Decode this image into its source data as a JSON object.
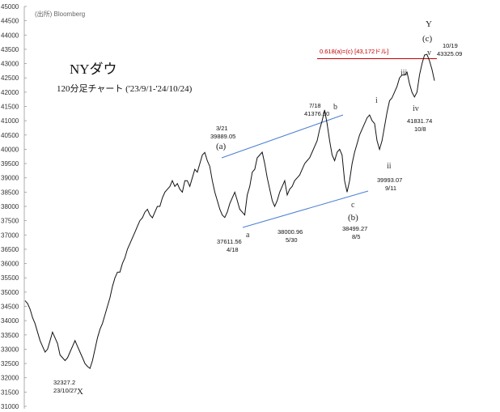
{
  "chart_data": {
    "type": "line",
    "title": "NYダウ",
    "subtitle": "120分足チャート ('23/9/1-'24/10/24)",
    "source": "(出所) Bloomberg",
    "ylim": [
      31000,
      45000
    ],
    "y_ticks": [
      "31000",
      "31500",
      "32000",
      "32500",
      "33000",
      "33500",
      "34000",
      "34500",
      "35000",
      "35500",
      "36000",
      "36500",
      "37000",
      "37500",
      "38000",
      "38500",
      "39000",
      "39500",
      "40000",
      "40500",
      "41000",
      "41500",
      "42000",
      "42500",
      "43000",
      "43500",
      "44000",
      "44500",
      "45000"
    ],
    "series": [
      {
        "values": [
          34700,
          34600,
          34400,
          34100,
          33900,
          33600,
          33300,
          33100,
          32900,
          33000,
          33300,
          33600,
          33400,
          33200,
          32800,
          32700,
          32600,
          32700,
          32900,
          33100,
          33300,
          33100,
          32900,
          32700,
          32500,
          32400,
          32327,
          32600,
          33000,
          33400,
          33700,
          33900,
          34200,
          34500,
          34800,
          35200,
          35500,
          35700,
          35700,
          36000,
          36200,
          36500,
          36700,
          36900,
          37100,
          37300,
          37500,
          37600,
          37800,
          37900,
          37700,
          37600,
          37800,
          38000,
          38000,
          38300,
          38500,
          38600,
          38700,
          38900,
          38700,
          38800,
          38600,
          38500,
          38900,
          38900,
          38700,
          39000,
          39300,
          39200,
          39500,
          39800,
          39890,
          39600,
          39400,
          38900,
          38500,
          38200,
          37900,
          37700,
          37612,
          37800,
          38100,
          38300,
          38500,
          38200,
          37900,
          37800,
          37700,
          38400,
          38700,
          39200,
          39300,
          39700,
          39800,
          39900,
          39500,
          39000,
          38600,
          38200,
          38001,
          38200,
          38500,
          38700,
          38900,
          38400,
          38600,
          38700,
          38900,
          39000,
          39100,
          39300,
          39500,
          39600,
          39700,
          39900,
          40100,
          40300,
          40700,
          41000,
          41376,
          40900,
          40300,
          39800,
          39600,
          39900,
          40000,
          39800,
          38900,
          38499,
          38900,
          39500,
          39900,
          40200,
          40500,
          40700,
          40900,
          41100,
          41200,
          41000,
          40900,
          40300,
          39994,
          40300,
          40800,
          41300,
          41700,
          41800,
          42000,
          42200,
          42500,
          42600,
          42600,
          42700,
          42300,
          42000,
          41832,
          42000,
          42600,
          43000,
          43300,
          43325,
          43100,
          42800,
          42400
        ]
      }
    ],
    "annotations": {
      "fib_label": "0.618(a)=(c) [43,172ドル]",
      "fib_value": 43172,
      "X": {
        "date": "23/10/27",
        "value": "32327.2",
        "wave": "X"
      },
      "a_top": {
        "date": "3/21",
        "value": "39889.05",
        "wave": "(a)"
      },
      "a_low": {
        "date": "4/18",
        "value": "37611.56",
        "wave": "a"
      },
      "b_low": {
        "date": "5/30",
        "value": "38000.96"
      },
      "b_top": {
        "date": "7/18",
        "value": "41376.00",
        "wave": "b"
      },
      "c_low": {
        "date": "8/5",
        "value": "38499.27",
        "wave": "c",
        "wave2": "(b)"
      },
      "ii": {
        "date": "9/11",
        "value": "39993.07",
        "wave": "ii"
      },
      "i": {
        "wave": "i"
      },
      "iii": {
        "wave": "iii"
      },
      "iv": {
        "date": "10/8",
        "value": "41831.74",
        "wave": "iv"
      },
      "v": {
        "wave": "v"
      },
      "Y": {
        "date": "10/19",
        "value": "43325.09",
        "wave": "Y",
        "wave2": "(c)"
      }
    }
  }
}
